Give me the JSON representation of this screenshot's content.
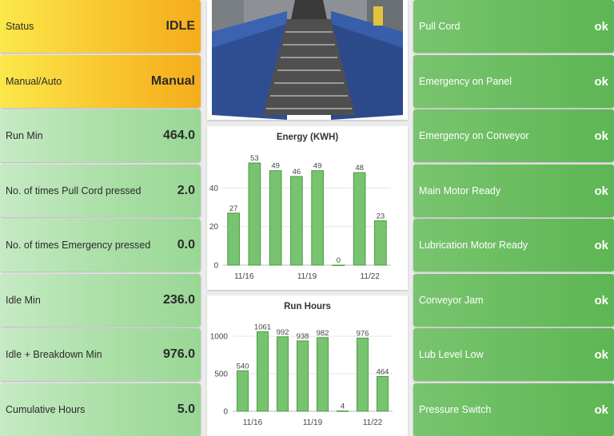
{
  "left_tiles": [
    {
      "label": "Status",
      "value": "IDLE",
      "style": "yellow"
    },
    {
      "label": "Manual/Auto",
      "value": "Manual",
      "style": "yellow"
    },
    {
      "label": "Run Min",
      "value": "464.0",
      "style": "green"
    },
    {
      "label": "No. of times Pull Cord pressed",
      "value": "2.0",
      "style": "green"
    },
    {
      "label": "No. of times Emergency pressed",
      "value": "0.0",
      "style": "green"
    },
    {
      "label": "Idle Min",
      "value": "236.0",
      "style": "green"
    },
    {
      "label": "Idle + Breakdown Min",
      "value": "976.0",
      "style": "green"
    },
    {
      "label": "Cumulative Hours",
      "value": "5.0",
      "style": "green"
    }
  ],
  "right_tiles": [
    {
      "label": "Pull Cord",
      "value": "ok"
    },
    {
      "label": "Emergency on Panel",
      "value": "ok"
    },
    {
      "label": "Emergency on Conveyor",
      "value": "ok"
    },
    {
      "label": "Main Motor Ready",
      "value": "ok"
    },
    {
      "label": "Lubrication Motor Ready",
      "value": "ok"
    },
    {
      "label": "Conveyor Jam",
      "value": "ok"
    },
    {
      "label": "Lub Level Low",
      "value": "ok"
    },
    {
      "label": "Pressure Switch",
      "value": "ok"
    }
  ],
  "colors": {
    "bar_fill": "#78c36f",
    "ok_tile": "#5db653",
    "status_tile": "#f8c22c",
    "metric_tile": "#a8dea4"
  },
  "chart_data": [
    {
      "type": "bar",
      "title": "Energy (KWH)",
      "categories": [
        "11/16",
        "11/17",
        "11/18",
        "11/19",
        "11/20",
        "11/21",
        "11/22",
        "11/23"
      ],
      "values": [
        27,
        53,
        49,
        46,
        49,
        0,
        48,
        23
      ],
      "x_tick_labels": [
        "11/16",
        "11/19",
        "11/22"
      ],
      "y_ticks": [
        0,
        20,
        40
      ],
      "ylim": [
        0,
        58
      ],
      "grid": true
    },
    {
      "type": "bar",
      "title": "Run Hours",
      "categories": [
        "11/16",
        "11/17",
        "11/18",
        "11/19",
        "11/20",
        "11/21",
        "11/22",
        "11/23"
      ],
      "values": [
        540,
        1061,
        992,
        938,
        982,
        4,
        976,
        464
      ],
      "x_tick_labels": [
        "11/16",
        "11/19",
        "11/22"
      ],
      "y_ticks": [
        0,
        500,
        1000
      ],
      "ylim": [
        0,
        1150
      ],
      "grid": true
    }
  ]
}
